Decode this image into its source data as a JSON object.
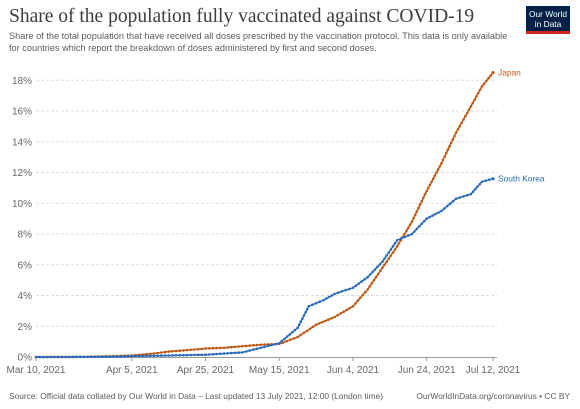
{
  "header": {
    "title": "Share of the population fully vaccinated against COVID-19",
    "subtitle": "Share of the total population that have received all doses prescribed by the vaccination protocol. This data is only available for countries which report the breakdown of doses administered by first and second doses."
  },
  "logo": {
    "line1": "Our World",
    "line2": "in Data"
  },
  "footer": {
    "source": "Source: Official data collated by Our World in Data – Last updated 13 July 2021, 12:00 (London time)",
    "credit": "OurWorldInData.org/coronavirus • CC BY"
  },
  "colors": {
    "japan": "#be5915",
    "south_korea": "#286bbb",
    "grid": "#dddddd",
    "axis": "#999999"
  },
  "chart_data": {
    "type": "line",
    "title": "Share of the population fully vaccinated against COVID-19",
    "xlabel": "",
    "ylabel": "",
    "x_range": [
      "2021-03-10",
      "2021-07-12"
    ],
    "ylim": [
      0,
      18.8
    ],
    "y_ticks": [
      0,
      2,
      4,
      6,
      8,
      10,
      12,
      14,
      16,
      18
    ],
    "y_tick_labels": [
      "0%",
      "2%",
      "4%",
      "6%",
      "8%",
      "10%",
      "12%",
      "14%",
      "16%",
      "18%"
    ],
    "x_ticks": [
      "2021-03-10",
      "2021-04-05",
      "2021-04-25",
      "2021-05-15",
      "2021-06-04",
      "2021-06-24",
      "2021-07-12"
    ],
    "x_tick_labels": [
      "Mar 10, 2021",
      "Apr 5, 2021",
      "Apr 25, 2021",
      "May 15, 2021",
      "Jun 4, 2021",
      "Jun 24, 2021",
      "Jul 12, 2021"
    ],
    "grid": true,
    "series": [
      {
        "name": "Japan",
        "color": "#be5915",
        "points": [
          [
            "2021-03-10",
            0.0
          ],
          [
            "2021-03-20",
            0.0
          ],
          [
            "2021-03-30",
            0.05
          ],
          [
            "2021-04-05",
            0.1
          ],
          [
            "2021-04-10",
            0.2
          ],
          [
            "2021-04-15",
            0.35
          ],
          [
            "2021-04-20",
            0.45
          ],
          [
            "2021-04-25",
            0.55
          ],
          [
            "2021-04-30",
            0.6
          ],
          [
            "2021-05-05",
            0.7
          ],
          [
            "2021-05-10",
            0.8
          ],
          [
            "2021-05-15",
            0.85
          ],
          [
            "2021-05-20",
            1.3
          ],
          [
            "2021-05-25",
            2.1
          ],
          [
            "2021-05-30",
            2.6
          ],
          [
            "2021-06-04",
            3.3
          ],
          [
            "2021-06-08",
            4.4
          ],
          [
            "2021-06-12",
            5.8
          ],
          [
            "2021-06-16",
            7.2
          ],
          [
            "2021-06-20",
            8.8
          ],
          [
            "2021-06-24",
            10.8
          ],
          [
            "2021-06-28",
            12.6
          ],
          [
            "2021-07-02",
            14.6
          ],
          [
            "2021-07-06",
            16.3
          ],
          [
            "2021-07-09",
            17.6
          ],
          [
            "2021-07-12",
            18.5
          ]
        ]
      },
      {
        "name": "South Korea",
        "color": "#286bbb",
        "points": [
          [
            "2021-03-10",
            0.0
          ],
          [
            "2021-03-30",
            0.02
          ],
          [
            "2021-04-05",
            0.05
          ],
          [
            "2021-04-15",
            0.1
          ],
          [
            "2021-04-25",
            0.15
          ],
          [
            "2021-05-05",
            0.3
          ],
          [
            "2021-05-10",
            0.6
          ],
          [
            "2021-05-15",
            0.9
          ],
          [
            "2021-05-20",
            1.9
          ],
          [
            "2021-05-23",
            3.3
          ],
          [
            "2021-05-27",
            3.7
          ],
          [
            "2021-05-30",
            4.1
          ],
          [
            "2021-06-02",
            4.35
          ],
          [
            "2021-06-04",
            4.5
          ],
          [
            "2021-06-08",
            5.2
          ],
          [
            "2021-06-12",
            6.2
          ],
          [
            "2021-06-16",
            7.6
          ],
          [
            "2021-06-20",
            8.0
          ],
          [
            "2021-06-24",
            9.0
          ],
          [
            "2021-06-28",
            9.5
          ],
          [
            "2021-07-02",
            10.3
          ],
          [
            "2021-07-06",
            10.6
          ],
          [
            "2021-07-09",
            11.4
          ],
          [
            "2021-07-12",
            11.6
          ]
        ]
      }
    ]
  }
}
